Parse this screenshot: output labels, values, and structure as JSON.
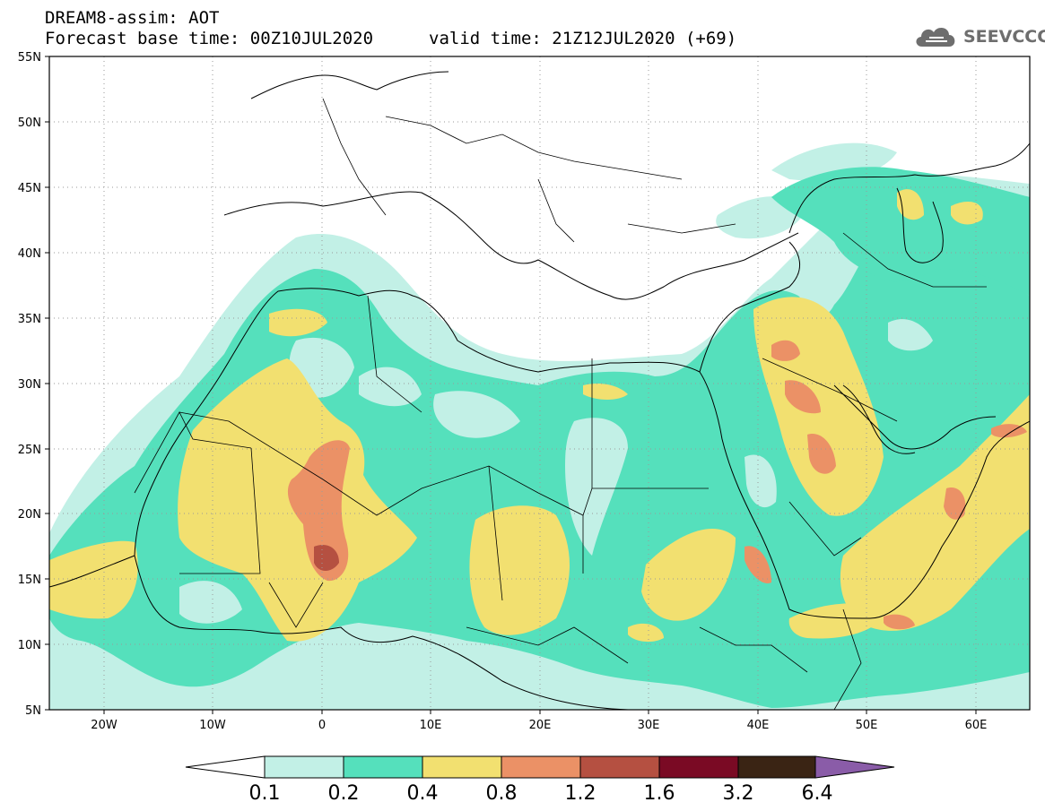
{
  "header": {
    "title": "DREAM8-assim: AOT",
    "base_time": "Forecast base time: 00Z10JUL2020",
    "valid_time": "valid time: 21Z12JUL2020 (+69)"
  },
  "logo": {
    "text": "SEEVCCC",
    "icon": "cloud-icon"
  },
  "map": {
    "projection": "lat-lon",
    "lon_range": [
      -25,
      65
    ],
    "lat_range": [
      5,
      55
    ],
    "lat_labels": [
      "55N",
      "50N",
      "45N",
      "40N",
      "35N",
      "30N",
      "25N",
      "20N",
      "15N",
      "10N",
      "5N"
    ],
    "lon_labels": [
      "20W",
      "10W",
      "0",
      "10E",
      "20E",
      "30E",
      "40E",
      "50E",
      "60E"
    ],
    "variable": "Aerosol Optical Thickness"
  },
  "colorbar": {
    "levels": [
      "0.1",
      "0.2",
      "0.4",
      "0.8",
      "1.2",
      "1.6",
      "3.2",
      "6.4"
    ],
    "colors": [
      "#c2f0e6",
      "#55e0bc",
      "#f2e070",
      "#eb9166",
      "#b55041",
      "#7a0a24",
      "#3a2414",
      "#8a5ca8"
    ],
    "under_color": "#ffffff",
    "over_color": "#8a5ca8"
  }
}
